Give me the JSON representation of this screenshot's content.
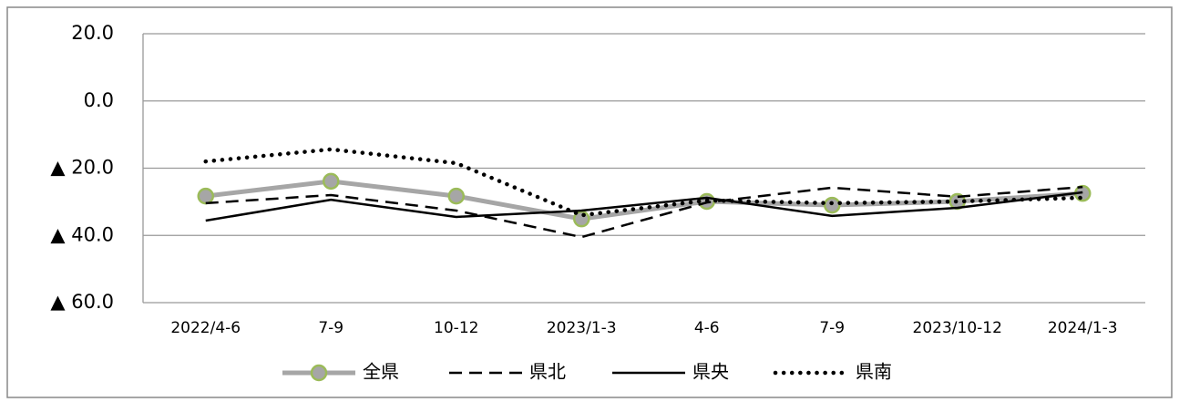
{
  "chart_data": {
    "type": "line",
    "categories": [
      "2022/4-6",
      "7-9",
      "10-12",
      "2023/1-3",
      "4-6",
      "7-9",
      "2023/10-12",
      "2024/1-3"
    ],
    "ylim": [
      -60,
      20
    ],
    "yticks": [
      {
        "value": 20,
        "label": "20.0"
      },
      {
        "value": 0,
        "label": "0.0"
      },
      {
        "value": -20,
        "label": "▲ 20.0"
      },
      {
        "value": -40,
        "label": "▲ 40.0"
      },
      {
        "value": -60,
        "label": "▲ 60.0"
      }
    ],
    "grid": true,
    "legend": "bottom",
    "series": [
      {
        "name": "全県",
        "color": "#a6a6a6",
        "style": "solid",
        "marker": "circle",
        "values": [
          -28.3,
          -23.9,
          -28.3,
          -35.1,
          -29.9,
          -31.0,
          -29.9,
          -27.5
        ]
      },
      {
        "name": "県北",
        "color": "#000000",
        "style": "dashed",
        "values": [
          -30.4,
          -28.0,
          -32.6,
          -40.5,
          -30.2,
          -25.8,
          -28.5,
          -25.6
        ]
      },
      {
        "name": "県央",
        "color": "#000000",
        "style": "solid",
        "values": [
          -35.6,
          -29.4,
          -34.5,
          -32.6,
          -28.8,
          -34.2,
          -31.8,
          -27.2
        ]
      },
      {
        "name": "県南",
        "color": "#000000",
        "style": "dotted",
        "values": [
          -18.0,
          -14.4,
          -18.5,
          -34.0,
          -29.6,
          -30.4,
          -29.9,
          -28.8
        ]
      }
    ]
  }
}
